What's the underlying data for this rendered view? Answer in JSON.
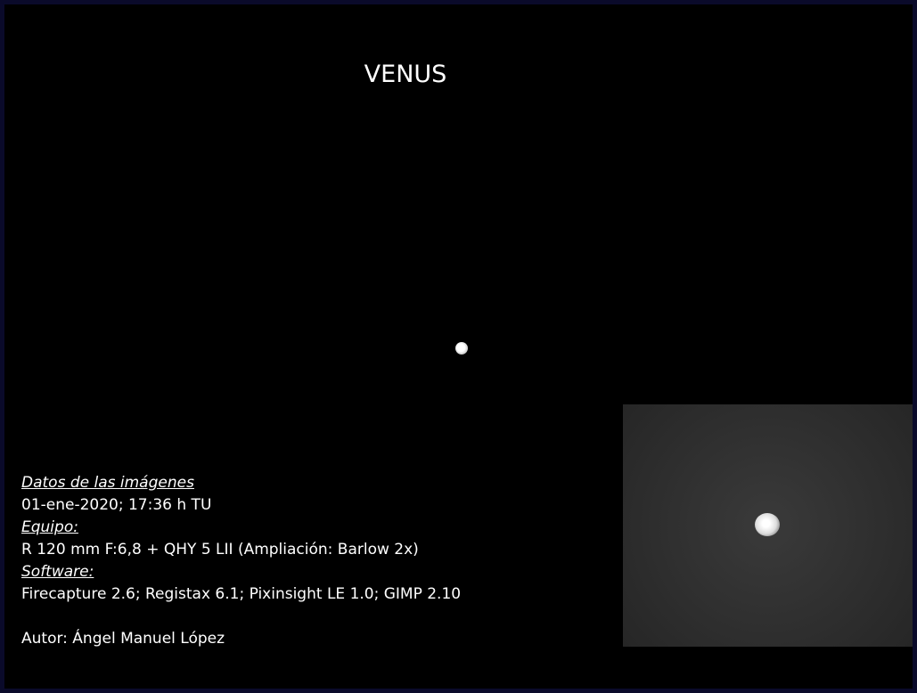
{
  "title": "VENUS",
  "info": {
    "data_heading": "Datos de las imágenes",
    "date": "01-ene-2020; 17:36 h TU",
    "equipment_heading": "Equipo:",
    "equipment": "R 120 mm F:6,8 + QHY 5 LII (Ampliación: Barlow 2x)",
    "software_heading": "Software:",
    "software": "Firecapture 2.6; Registax 6.1; Pixinsight LE 1.0; GIMP 2.10",
    "author": "Autor: Ángel Manuel López"
  }
}
